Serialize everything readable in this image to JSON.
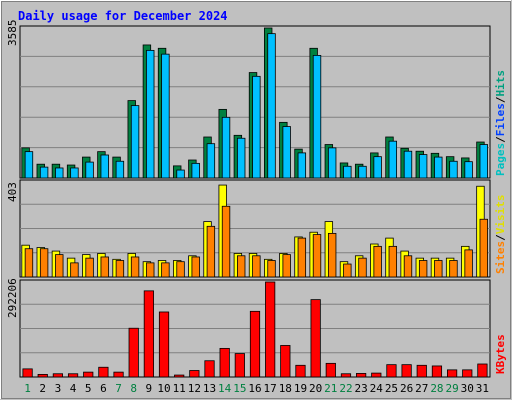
{
  "chart_data": [
    {
      "type": "bar",
      "title": "Daily usage for December 2024",
      "categories": [
        "1",
        "2",
        "3",
        "4",
        "5",
        "6",
        "7",
        "8",
        "9",
        "10",
        "11",
        "12",
        "13",
        "14",
        "15",
        "16",
        "17",
        "18",
        "19",
        "20",
        "21",
        "22",
        "23",
        "24",
        "25",
        "26",
        "27",
        "28",
        "29",
        "30",
        "31"
      ],
      "weekend_days": [
        "1",
        "7",
        "8",
        "14",
        "15",
        "21",
        "22",
        "28",
        "29"
      ],
      "ylim": [
        0,
        3585
      ],
      "ytick_label": "3585",
      "legend": [
        {
          "name": "Pages",
          "color": "#00c0c0"
        },
        {
          "name": "Files",
          "color": "#0040ff"
        },
        {
          "name": "Hits",
          "color": "#00a080"
        }
      ],
      "series": [
        {
          "name": "Hits",
          "color": "#008040",
          "values": [
            720,
            330,
            330,
            310,
            500,
            630,
            500,
            1850,
            3180,
            3100,
            290,
            430,
            980,
            1640,
            1020,
            2520,
            3585,
            1330,
            690,
            3100,
            800,
            360,
            330,
            600,
            980,
            710,
            640,
            590,
            510,
            480,
            860
          ]
        },
        {
          "name": "Files",
          "color": "#00c0ff",
          "values": [
            630,
            260,
            240,
            240,
            380,
            550,
            400,
            1730,
            3050,
            2960,
            190,
            350,
            820,
            1450,
            950,
            2430,
            3450,
            1230,
            600,
            2930,
            720,
            280,
            280,
            510,
            880,
            640,
            560,
            500,
            400,
            390,
            800
          ]
        }
      ]
    },
    {
      "type": "bar",
      "categories": [
        "1",
        "2",
        "3",
        "4",
        "5",
        "6",
        "7",
        "8",
        "9",
        "10",
        "11",
        "12",
        "13",
        "14",
        "15",
        "16",
        "17",
        "18",
        "19",
        "20",
        "21",
        "22",
        "23",
        "24",
        "25",
        "26",
        "27",
        "28",
        "29",
        "30",
        "31"
      ],
      "ylim": [
        0,
        403
      ],
      "ytick_label": "403",
      "legend": [
        {
          "name": "Sites",
          "color": "#ff8000"
        },
        {
          "name": "Visits",
          "color": "#e0e000"
        }
      ],
      "series": [
        {
          "name": "Visits",
          "color": "#ffff00",
          "values": [
            135,
            125,
            110,
            80,
            95,
            100,
            75,
            100,
            65,
            70,
            70,
            90,
            235,
            390,
            100,
            100,
            75,
            100,
            170,
            190,
            235,
            65,
            90,
            140,
            165,
            110,
            80,
            80,
            80,
            130,
            385
          ]
        },
        {
          "name": "Sites",
          "color": "#ff8000",
          "values": [
            120,
            120,
            95,
            60,
            80,
            85,
            70,
            85,
            60,
            60,
            65,
            85,
            215,
            300,
            90,
            90,
            70,
            95,
            165,
            180,
            185,
            55,
            80,
            130,
            130,
            90,
            70,
            70,
            70,
            115,
            245
          ]
        }
      ]
    },
    {
      "type": "bar",
      "categories": [
        "1",
        "2",
        "3",
        "4",
        "5",
        "6",
        "7",
        "8",
        "9",
        "10",
        "11",
        "12",
        "13",
        "14",
        "15",
        "16",
        "17",
        "18",
        "19",
        "20",
        "21",
        "22",
        "23",
        "24",
        "25",
        "26",
        "27",
        "28",
        "29",
        "30",
        "31"
      ],
      "ylim": [
        0,
        292206
      ],
      "ytick_label": "292206",
      "legend": [
        {
          "name": "KBytes",
          "color": "#ff0000"
        }
      ],
      "series": [
        {
          "name": "KBytes",
          "color": "#ff0000",
          "values": [
            25000,
            8000,
            10000,
            10000,
            15000,
            30000,
            15000,
            150000,
            265000,
            200000,
            6000,
            20000,
            50000,
            88000,
            72000,
            202000,
            292206,
            97000,
            36000,
            238000,
            42000,
            10000,
            11000,
            12000,
            38000,
            38000,
            36000,
            34000,
            22000,
            22000,
            40000
          ]
        }
      ]
    }
  ]
}
